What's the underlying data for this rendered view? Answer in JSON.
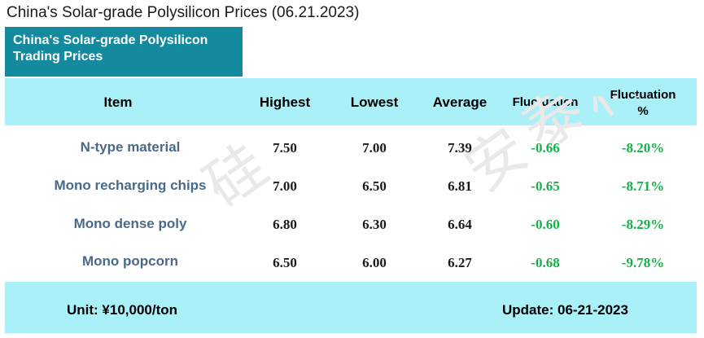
{
  "page_title": "China's Solar-grade Polysilicon Prices (06.21.2023)",
  "tag": {
    "line1": "China's Solar-grade Polysilicon",
    "line2": "Trading Prices"
  },
  "columns": {
    "item": "Item",
    "highest": "Highest",
    "lowest": "Lowest",
    "average": "Average",
    "fluctuation": "Fluctuation",
    "fluctuation_pct_line1": "Fluctuation",
    "fluctuation_pct_line2": "%"
  },
  "rows": [
    {
      "item": "N-type material",
      "highest": "7.50",
      "lowest": "7.00",
      "average": "7.39",
      "fluctuation": "-0.66",
      "fluctuation_pct": "-8.20%"
    },
    {
      "item": "Mono recharging chips",
      "highest": "7.00",
      "lowest": "6.50",
      "average": "6.81",
      "fluctuation": "-0.65",
      "fluctuation_pct": "-8.71%"
    },
    {
      "item": "Mono dense poly",
      "highest": "6.80",
      "lowest": "6.30",
      "average": "6.64",
      "fluctuation": "-0.60",
      "fluctuation_pct": "-8.29%"
    },
    {
      "item": "Mono popcorn",
      "highest": "6.50",
      "lowest": "6.00",
      "average": "6.27",
      "fluctuation": "-0.68",
      "fluctuation_pct": "-9.78%"
    }
  ],
  "footer": {
    "unit": "Unit: ¥10,000/ton",
    "update": "Update: 06-21-2023"
  },
  "colors": {
    "band": "#aaf0f8",
    "tag": "#138a9e",
    "item_text": "#4a6a8a",
    "change_text": "#16b04a"
  }
}
